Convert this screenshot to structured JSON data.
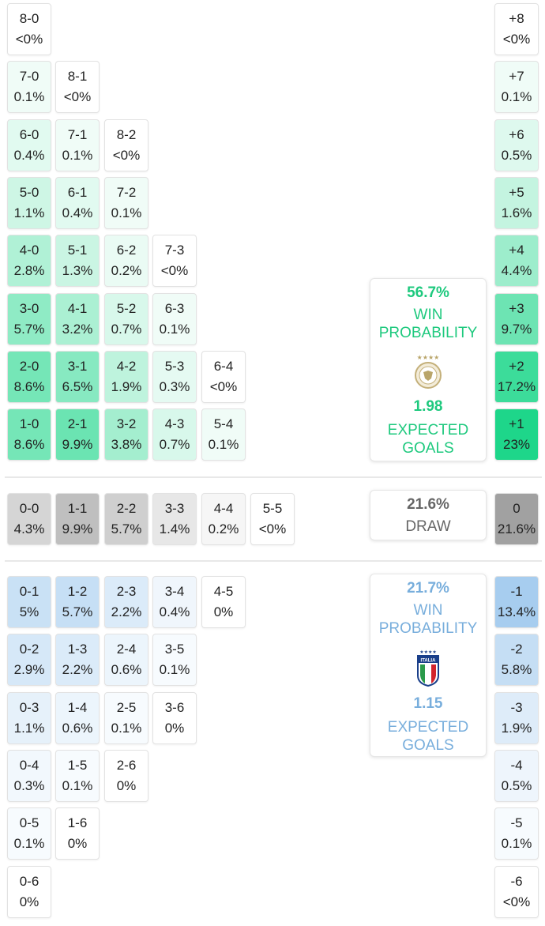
{
  "colors": {
    "home": "#1ec97e",
    "away": "#78aedc",
    "draw": "#666666",
    "home_fill": "#1ed68a",
    "away_fill": "#9cc6ec",
    "draw_fill": "#9e9e9e"
  },
  "home_scores": [
    [
      {
        "score": "8-0",
        "prob": "<0%"
      }
    ],
    [
      {
        "score": "7-0",
        "prob": "0.1%"
      },
      {
        "score": "8-1",
        "prob": "<0%"
      }
    ],
    [
      {
        "score": "6-0",
        "prob": "0.4%"
      },
      {
        "score": "7-1",
        "prob": "0.1%"
      },
      {
        "score": "8-2",
        "prob": "<0%"
      }
    ],
    [
      {
        "score": "5-0",
        "prob": "1.1%"
      },
      {
        "score": "6-1",
        "prob": "0.4%"
      },
      {
        "score": "7-2",
        "prob": "0.1%"
      }
    ],
    [
      {
        "score": "4-0",
        "prob": "2.8%"
      },
      {
        "score": "5-1",
        "prob": "1.3%"
      },
      {
        "score": "6-2",
        "prob": "0.2%"
      },
      {
        "score": "7-3",
        "prob": "<0%"
      }
    ],
    [
      {
        "score": "3-0",
        "prob": "5.7%"
      },
      {
        "score": "4-1",
        "prob": "3.2%"
      },
      {
        "score": "5-2",
        "prob": "0.7%"
      },
      {
        "score": "6-3",
        "prob": "0.1%"
      }
    ],
    [
      {
        "score": "2-0",
        "prob": "8.6%"
      },
      {
        "score": "3-1",
        "prob": "6.5%"
      },
      {
        "score": "4-2",
        "prob": "1.9%"
      },
      {
        "score": "5-3",
        "prob": "0.3%"
      },
      {
        "score": "6-4",
        "prob": "<0%"
      }
    ],
    [
      {
        "score": "1-0",
        "prob": "8.6%"
      },
      {
        "score": "2-1",
        "prob": "9.9%"
      },
      {
        "score": "3-2",
        "prob": "3.8%"
      },
      {
        "score": "4-3",
        "prob": "0.7%"
      },
      {
        "score": "5-4",
        "prob": "0.1%"
      }
    ]
  ],
  "home_margins": [
    {
      "margin": "+8",
      "prob": "<0%"
    },
    {
      "margin": "+7",
      "prob": "0.1%"
    },
    {
      "margin": "+6",
      "prob": "0.5%"
    },
    {
      "margin": "+5",
      "prob": "1.6%"
    },
    {
      "margin": "+4",
      "prob": "4.4%"
    },
    {
      "margin": "+3",
      "prob": "9.7%"
    },
    {
      "margin": "+2",
      "prob": "17.2%"
    },
    {
      "margin": "+1",
      "prob": "23%"
    }
  ],
  "draw_scores": [
    {
      "score": "0-0",
      "prob": "4.3%"
    },
    {
      "score": "1-1",
      "prob": "9.9%"
    },
    {
      "score": "2-2",
      "prob": "5.7%"
    },
    {
      "score": "3-3",
      "prob": "1.4%"
    },
    {
      "score": "4-4",
      "prob": "0.2%"
    },
    {
      "score": "5-5",
      "prob": "<0%"
    }
  ],
  "draw_margin": {
    "margin": "0",
    "prob": "21.6%"
  },
  "away_scores": [
    [
      {
        "score": "0-1",
        "prob": "5%"
      },
      {
        "score": "1-2",
        "prob": "5.7%"
      },
      {
        "score": "2-3",
        "prob": "2.2%"
      },
      {
        "score": "3-4",
        "prob": "0.4%"
      },
      {
        "score": "4-5",
        "prob": "0%"
      }
    ],
    [
      {
        "score": "0-2",
        "prob": "2.9%"
      },
      {
        "score": "1-3",
        "prob": "2.2%"
      },
      {
        "score": "2-4",
        "prob": "0.6%"
      },
      {
        "score": "3-5",
        "prob": "0.1%"
      }
    ],
    [
      {
        "score": "0-3",
        "prob": "1.1%"
      },
      {
        "score": "1-4",
        "prob": "0.6%"
      },
      {
        "score": "2-5",
        "prob": "0.1%"
      },
      {
        "score": "3-6",
        "prob": "0%"
      }
    ],
    [
      {
        "score": "0-4",
        "prob": "0.3%"
      },
      {
        "score": "1-5",
        "prob": "0.1%"
      },
      {
        "score": "2-6",
        "prob": "0%"
      }
    ],
    [
      {
        "score": "0-5",
        "prob": "0.1%"
      },
      {
        "score": "1-6",
        "prob": "0%"
      }
    ],
    [
      {
        "score": "0-6",
        "prob": "0%"
      }
    ]
  ],
  "away_margins": [
    {
      "margin": "-1",
      "prob": "13.4%"
    },
    {
      "margin": "-2",
      "prob": "5.8%"
    },
    {
      "margin": "-3",
      "prob": "1.9%"
    },
    {
      "margin": "-4",
      "prob": "0.5%"
    },
    {
      "margin": "-5",
      "prob": "0.1%"
    },
    {
      "margin": "-6",
      "prob": "<0%"
    }
  ],
  "home_summary": {
    "win_prob": "56.7%",
    "win_label_1": "WIN",
    "win_label_2": "PROBABILITY",
    "xg": "1.98",
    "xg_label_1": "EXPECTED",
    "xg_label_2": "GOALS",
    "crest": "germany-crest-icon"
  },
  "draw_summary": {
    "prob": "21.6%",
    "label": "DRAW"
  },
  "away_summary": {
    "win_prob": "21.7%",
    "win_label_1": "WIN",
    "win_label_2": "PROBABILITY",
    "xg": "1.15",
    "xg_label_1": "EXPECTED",
    "xg_label_2": "GOALS",
    "crest": "italia-crest-icon",
    "crest_text": "ITALIA"
  }
}
